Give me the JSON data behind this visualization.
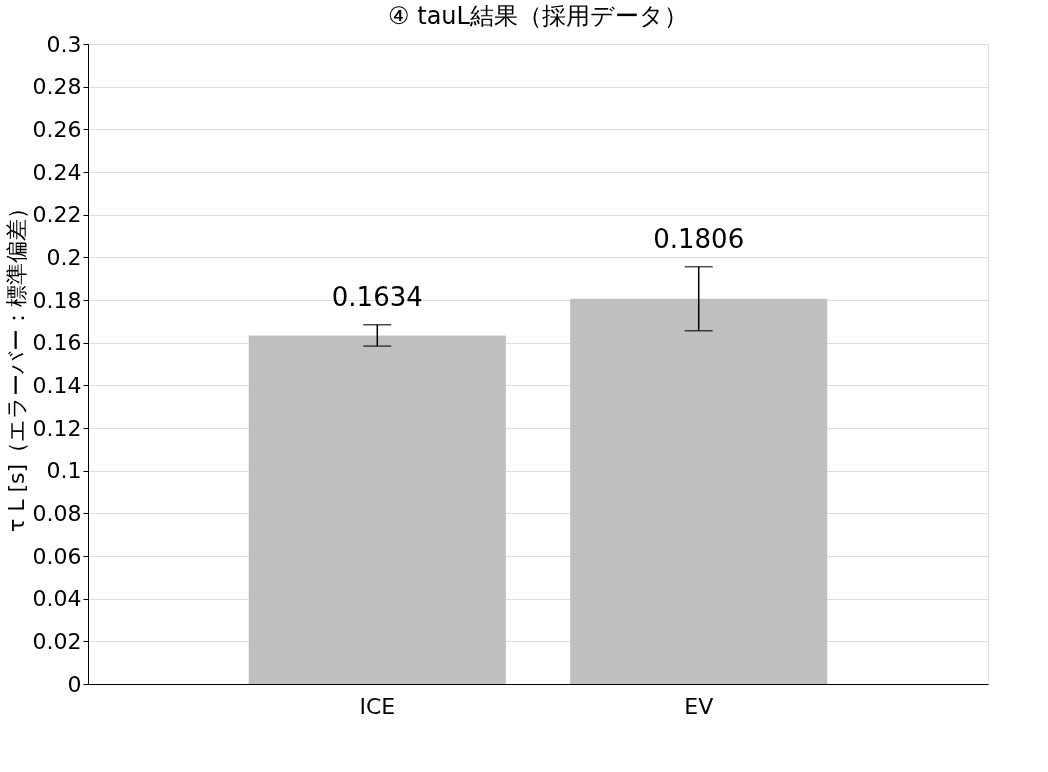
{
  "chart_data": {
    "type": "bar",
    "title": "④ tauL結果（採用データ）",
    "ylabel": "τ L [s]（エラーバー：標準偏差）",
    "categories": [
      "ICE",
      "EV"
    ],
    "series": [
      {
        "color": "#bfbfbf",
        "values": [
          0.1634,
          0.1806
        ],
        "errors": [
          0.005,
          0.015
        ]
      }
    ],
    "ylim": [
      0,
      0.3
    ],
    "yticks": [
      0,
      0.02,
      0.04,
      0.06,
      0.08,
      0.1,
      0.12,
      0.14,
      0.16,
      0.18,
      0.2,
      0.22,
      0.24,
      0.26,
      0.28,
      0.3
    ],
    "grid": "y",
    "data_labels": true
  }
}
